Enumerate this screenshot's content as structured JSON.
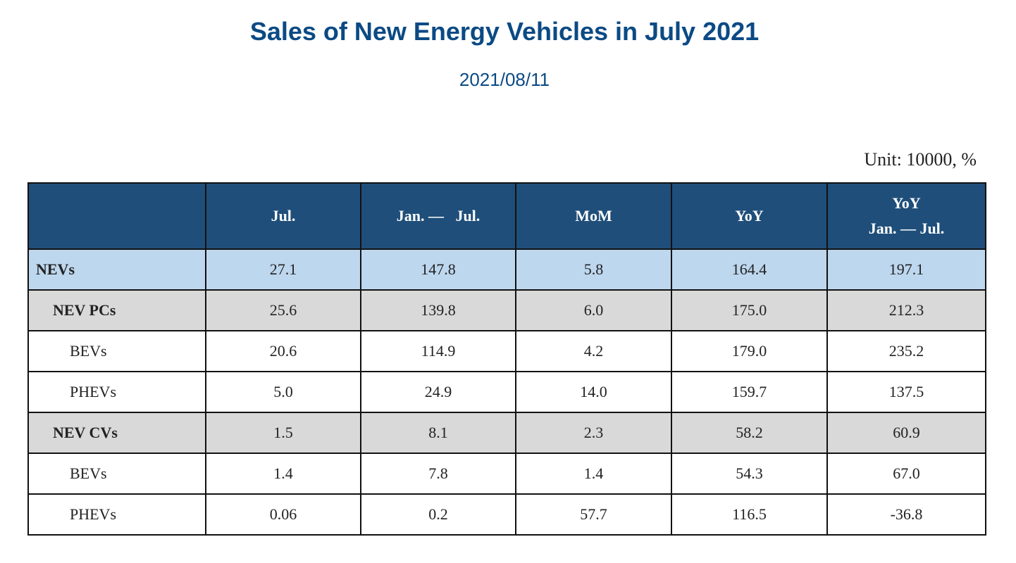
{
  "page": {
    "title": "Sales of New Energy Vehicles in July 2021",
    "date": "2021/08/11",
    "unit": "Unit: 10000, %"
  },
  "table": {
    "headers": [
      "",
      "Jul.",
      "Jan. —   Jul.",
      "MoM",
      "YoY",
      "YoY\nJan. — Jul."
    ],
    "rows": [
      {
        "level": 0,
        "label": "NEVs",
        "values": [
          "27.1",
          "147.8",
          "5.8",
          "164.4",
          "197.1"
        ]
      },
      {
        "level": 1,
        "label": "NEV PCs",
        "values": [
          "25.6",
          "139.8",
          "6.0",
          "175.0",
          "212.3"
        ]
      },
      {
        "level": 2,
        "label": "BEVs",
        "values": [
          "20.6",
          "114.9",
          "4.2",
          "179.0",
          "235.2"
        ]
      },
      {
        "level": 2,
        "label": "PHEVs",
        "values": [
          "5.0",
          "24.9",
          "14.0",
          "159.7",
          "137.5"
        ]
      },
      {
        "level": 1,
        "label": "NEV CVs",
        "values": [
          "1.5",
          "8.1",
          "2.3",
          "58.2",
          "60.9"
        ]
      },
      {
        "level": 2,
        "label": "BEVs",
        "values": [
          "1.4",
          "7.8",
          "1.4",
          "54.3",
          "67.0"
        ]
      },
      {
        "level": 2,
        "label": "PHEVs",
        "values": [
          "0.06",
          "0.2",
          "57.7",
          "116.5",
          "-36.8"
        ]
      }
    ]
  },
  "colors": {
    "title": "#0b4a84",
    "header_bg": "#1f4e7a",
    "nevs_row_bg": "#bdd7ee",
    "category_row_bg": "#d9d9d9",
    "border": "#111111"
  }
}
